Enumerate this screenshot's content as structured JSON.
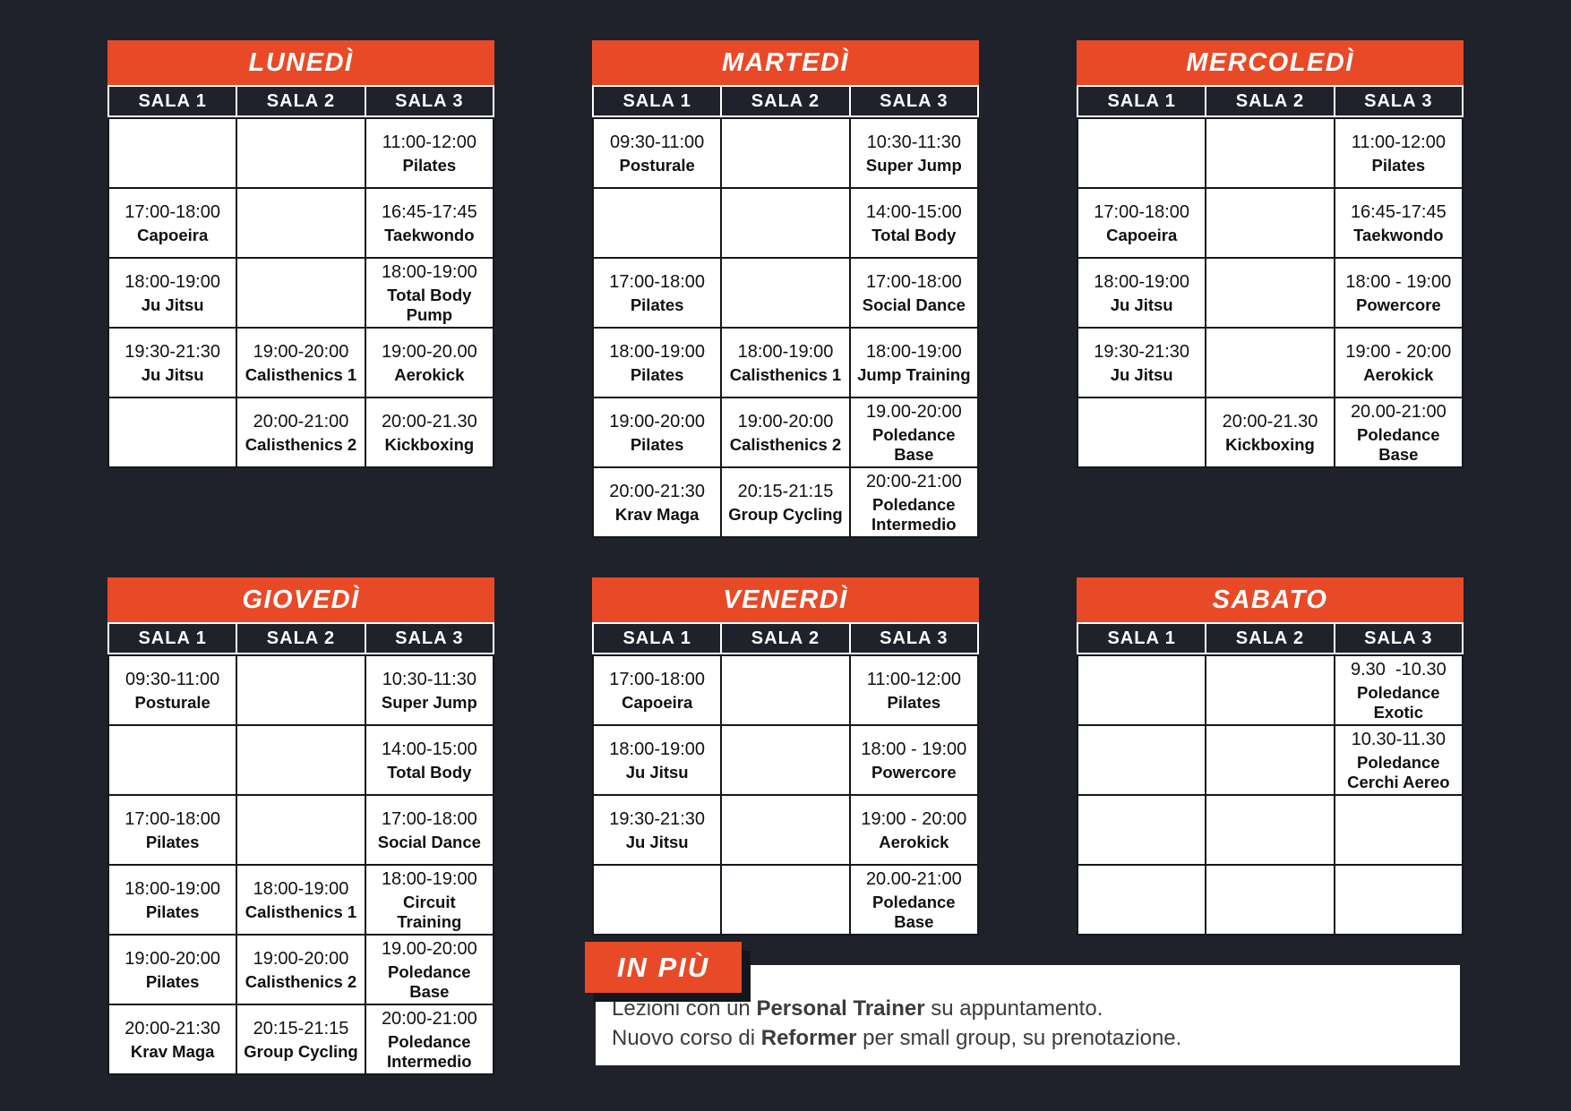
{
  "colors": {
    "accent": "#e84a27",
    "background": "#1f222b",
    "header_cell": "#1f222b",
    "body_border": "#15171e",
    "shadow": "#14161d",
    "text_dark": "#111111",
    "panel_text": "#3c3c3c"
  },
  "room_headers": [
    "SALA 1",
    "SALA 2",
    "SALA 3"
  ],
  "days": [
    {
      "name": "LUNEDÌ",
      "rows": [
        [
          null,
          null,
          {
            "time": "11:00-12:00",
            "activity": "Pilates"
          }
        ],
        [
          {
            "time": "17:00-18:00",
            "activity": "Capoeira"
          },
          null,
          {
            "time": "16:45-17:45",
            "activity": "Taekwondo"
          }
        ],
        [
          {
            "time": "18:00-19:00",
            "activity": "Ju Jitsu"
          },
          null,
          {
            "time": "18:00-19:00",
            "activity": "Total Body Pump"
          }
        ],
        [
          {
            "time": "19:30-21:30",
            "activity": "Ju Jitsu"
          },
          {
            "time": "19:00-20:00",
            "activity": "Calisthenics 1"
          },
          {
            "time": "19:00-20.00",
            "activity": "Aerokick"
          }
        ],
        [
          null,
          {
            "time": "20:00-21:00",
            "activity": "Calisthenics 2"
          },
          {
            "time": "20:00-21.30",
            "activity": "Kickboxing"
          }
        ]
      ]
    },
    {
      "name": "MARTEDÌ",
      "rows": [
        [
          {
            "time": "09:30-11:00",
            "activity": "Posturale"
          },
          null,
          {
            "time": "10:30-11:30",
            "activity": "Super Jump"
          }
        ],
        [
          null,
          null,
          {
            "time": "14:00-15:00",
            "activity": "Total Body"
          }
        ],
        [
          {
            "time": "17:00-18:00",
            "activity": "Pilates"
          },
          null,
          {
            "time": "17:00-18:00",
            "activity": "Social Dance"
          }
        ],
        [
          {
            "time": "18:00-19:00",
            "activity": "Pilates"
          },
          {
            "time": "18:00-19:00",
            "activity": "Calisthenics 1"
          },
          {
            "time": "18:00-19:00",
            "activity": "Jump Training"
          }
        ],
        [
          {
            "time": "19:00-20:00",
            "activity": "Pilates"
          },
          {
            "time": "19:00-20:00",
            "activity": "Calisthenics 2"
          },
          {
            "time": "19.00-20:00",
            "activity": "Poledance Base"
          }
        ],
        [
          {
            "time": "20:00-21:30",
            "activity": "Krav Maga"
          },
          {
            "time": "20:15-21:15",
            "activity": "Group Cycling"
          },
          {
            "time": "20:00-21:00",
            "activity": "Poledance Intermedio"
          }
        ]
      ]
    },
    {
      "name": "MERCOLEDÌ",
      "rows": [
        [
          null,
          null,
          {
            "time": "11:00-12:00",
            "activity": "Pilates"
          }
        ],
        [
          {
            "time": "17:00-18:00",
            "activity": "Capoeira"
          },
          null,
          {
            "time": "16:45-17:45",
            "activity": "Taekwondo"
          }
        ],
        [
          {
            "time": "18:00-19:00",
            "activity": "Ju Jitsu"
          },
          null,
          {
            "time": "18:00 - 19:00",
            "activity": "Powercore"
          }
        ],
        [
          {
            "time": "19:30-21:30",
            "activity": "Ju Jitsu"
          },
          null,
          {
            "time": "19:00 - 20:00",
            "activity": "Aerokick"
          }
        ],
        [
          null,
          {
            "time": "20:00-21.30",
            "activity": "Kickboxing"
          },
          {
            "time": "20.00-21:00",
            "activity": "Poledance Base"
          }
        ]
      ]
    },
    {
      "name": "GIOVEDÌ",
      "rows": [
        [
          {
            "time": "09:30-11:00",
            "activity": "Posturale"
          },
          null,
          {
            "time": "10:30-11:30",
            "activity": "Super Jump"
          }
        ],
        [
          null,
          null,
          {
            "time": "14:00-15:00",
            "activity": "Total Body"
          }
        ],
        [
          {
            "time": "17:00-18:00",
            "activity": "Pilates"
          },
          null,
          {
            "time": "17:00-18:00",
            "activity": "Social Dance"
          }
        ],
        [
          {
            "time": "18:00-19:00",
            "activity": "Pilates"
          },
          {
            "time": "18:00-19:00",
            "activity": "Calisthenics 1"
          },
          {
            "time": "18:00-19:00",
            "activity": "Circuit Training"
          }
        ],
        [
          {
            "time": "19:00-20:00",
            "activity": "Pilates"
          },
          {
            "time": "19:00-20:00",
            "activity": "Calisthenics 2"
          },
          {
            "time": "19.00-20:00",
            "activity": "Poledance Base"
          }
        ],
        [
          {
            "time": "20:00-21:30",
            "activity": "Krav Maga"
          },
          {
            "time": "20:15-21:15",
            "activity": "Group Cycling"
          },
          {
            "time": "20:00-21:00",
            "activity": "Poledance Intermedio"
          }
        ]
      ]
    },
    {
      "name": "VENERDÌ",
      "rows": [
        [
          {
            "time": "17:00-18:00",
            "activity": "Capoeira"
          },
          null,
          {
            "time": "11:00-12:00",
            "activity": "Pilates"
          }
        ],
        [
          {
            "time": "18:00-19:00",
            "activity": "Ju Jitsu"
          },
          null,
          {
            "time": "18:00 - 19:00",
            "activity": "Powercore"
          }
        ],
        [
          {
            "time": "19:30-21:30",
            "activity": "Ju Jitsu"
          },
          null,
          {
            "time": "19:00 - 20:00",
            "activity": "Aerokick"
          }
        ],
        [
          null,
          null,
          {
            "time": "20.00-21:00",
            "activity": "Poledance Base"
          }
        ]
      ]
    },
    {
      "name": "SABATO",
      "rows": [
        [
          null,
          null,
          {
            "time": "9.30  -10.30",
            "activity": "Poledance Exotic"
          }
        ],
        [
          null,
          null,
          {
            "time": "10.30-11.30",
            "activity": "Poledance Cerchi Aereo"
          }
        ],
        [
          null,
          null,
          null
        ],
        [
          null,
          null,
          null
        ]
      ]
    }
  ],
  "extra": {
    "badge_label": "IN PIÙ",
    "lines": [
      {
        "parts": [
          {
            "text": "Lezioni con un ",
            "bold": false
          },
          {
            "text": "Personal Trainer",
            "bold": true
          },
          {
            "text": " su appuntamento.",
            "bold": false
          }
        ]
      },
      {
        "parts": [
          {
            "text": "Nuovo corso di ",
            "bold": false
          },
          {
            "text": "Reformer",
            "bold": true
          },
          {
            "text": " per small group, su prenotazione.",
            "bold": false
          }
        ]
      }
    ]
  }
}
